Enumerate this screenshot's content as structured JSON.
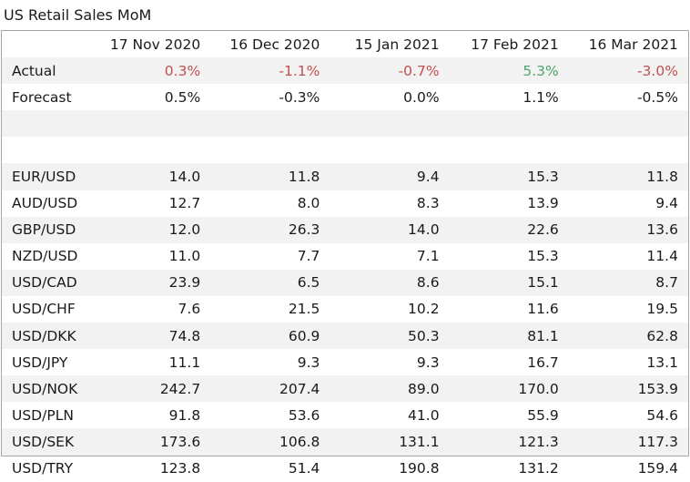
{
  "title": "US Retail Sales MoM",
  "columns": [
    "17 Nov 2020",
    "16 Dec 2020",
    "15 Jan 2021",
    "17 Feb 2021",
    "16 Mar 2021"
  ],
  "actual": {
    "label": "Actual",
    "values": [
      "0.3%",
      "-1.1%",
      "-0.7%",
      "5.3%",
      "-3.0%"
    ],
    "colors": [
      "neg",
      "neg",
      "neg",
      "pos",
      "neg"
    ]
  },
  "forecast": {
    "label": "Forecast",
    "values": [
      "0.5%",
      "-0.3%",
      "0.0%",
      "1.1%",
      "-0.5%"
    ]
  },
  "pairs": [
    {
      "label": "EUR/USD",
      "values": [
        "14.0",
        "11.8",
        "9.4",
        "15.3",
        "11.8"
      ]
    },
    {
      "label": "AUD/USD",
      "values": [
        "12.7",
        "8.0",
        "8.3",
        "13.9",
        "9.4"
      ]
    },
    {
      "label": "GBP/USD",
      "values": [
        "12.0",
        "26.3",
        "14.0",
        "22.6",
        "13.6"
      ]
    },
    {
      "label": "NZD/USD",
      "values": [
        "11.0",
        "7.7",
        "7.1",
        "15.3",
        "11.4"
      ]
    },
    {
      "label": "USD/CAD",
      "values": [
        "23.9",
        "6.5",
        "8.6",
        "15.1",
        "8.7"
      ]
    },
    {
      "label": "USD/CHF",
      "values": [
        "7.6",
        "21.5",
        "10.2",
        "11.6",
        "19.5"
      ]
    },
    {
      "label": "USD/DKK",
      "values": [
        "74.8",
        "60.9",
        "50.3",
        "81.1",
        "62.8"
      ]
    },
    {
      "label": "USD/JPY",
      "values": [
        "11.1",
        "9.3",
        "9.3",
        "16.7",
        "13.1"
      ]
    },
    {
      "label": "USD/NOK",
      "values": [
        "242.7",
        "207.4",
        "89.0",
        "170.0",
        "153.9"
      ]
    },
    {
      "label": "USD/PLN",
      "values": [
        "91.8",
        "53.6",
        "41.0",
        "55.9",
        "54.6"
      ]
    },
    {
      "label": "USD/SEK",
      "values": [
        "173.6",
        "106.8",
        "131.1",
        "121.3",
        "117.3"
      ]
    },
    {
      "label": "USD/TRY",
      "values": [
        "123.8",
        "51.4",
        "190.8",
        "131.2",
        "159.4"
      ]
    }
  ]
}
